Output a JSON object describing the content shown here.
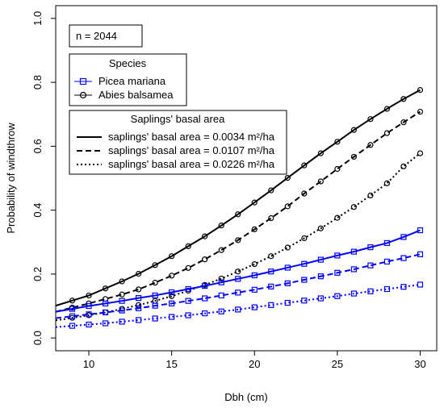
{
  "chart_data": {
    "type": "line",
    "title": "",
    "xlabel": "Dbh (cm)",
    "ylabel": "Probability of windthrow",
    "xlim": [
      8,
      31
    ],
    "ylim": [
      -0.04,
      1.04
    ],
    "x_ticks": [
      10,
      15,
      20,
      25,
      30
    ],
    "y_ticks": [
      0.0,
      0.2,
      0.4,
      0.6,
      0.8,
      1.0
    ],
    "y_tick_labels": [
      "0.0",
      "0.2",
      "0.4",
      "0.6",
      "0.8",
      "1.0"
    ],
    "grid": false,
    "x": [
      9,
      10,
      11,
      12,
      13,
      14,
      15,
      16,
      17,
      18,
      19,
      20,
      21,
      22,
      23,
      24,
      25,
      26,
      27,
      28,
      29,
      30
    ],
    "annotation": "n = 2044",
    "species_legend": {
      "title": "Species",
      "entries": [
        {
          "label": "Picea mariana",
          "color": "#0000ff",
          "marker": "square"
        },
        {
          "label": "Abies balsamea",
          "color": "#000000",
          "marker": "circle"
        }
      ]
    },
    "basal_legend": {
      "title": "Saplings' basal area",
      "entries": [
        {
          "label": "saplings' basal area = 0.0034 m²/ha",
          "dash": "solid"
        },
        {
          "label": "saplings' basal area = 0.0107 m²/ha",
          "dash": "dashed"
        },
        {
          "label": "saplings' basal area = 0.0226 m²/ha",
          "dash": "dotted"
        }
      ]
    },
    "series": [
      {
        "species": "Abies balsamea",
        "basal_area": "0.0034",
        "color": "#000000",
        "marker": "circle",
        "dash": "solid",
        "values": [
          0.117,
          0.133,
          0.155,
          0.177,
          0.201,
          0.228,
          0.256,
          0.287,
          0.318,
          0.352,
          0.387,
          0.424,
          0.462,
          0.501,
          0.54,
          0.578,
          0.614,
          0.651,
          0.685,
          0.717,
          0.748,
          0.776
        ]
      },
      {
        "species": "Abies balsamea",
        "basal_area": "0.0107",
        "color": "#000000",
        "marker": "circle",
        "dash": "dashed",
        "values": [
          0.095,
          0.108,
          0.122,
          0.136,
          0.152,
          0.173,
          0.195,
          0.219,
          0.246,
          0.275,
          0.306,
          0.34,
          0.375,
          0.412,
          0.452,
          0.49,
          0.529,
          0.567,
          0.604,
          0.641,
          0.675,
          0.708
        ]
      },
      {
        "species": "Abies balsamea",
        "basal_area": "0.0226",
        "color": "#000000",
        "marker": "circle",
        "dash": "dotted",
        "values": [
          0.063,
          0.071,
          0.08,
          0.091,
          0.103,
          0.116,
          0.131,
          0.148,
          0.166,
          0.186,
          0.208,
          0.231,
          0.256,
          0.283,
          0.312,
          0.343,
          0.376,
          0.41,
          0.446,
          0.484,
          0.537,
          0.578
        ]
      },
      {
        "species": "Picea mariana",
        "basal_area": "0.0034",
        "color": "#0000ff",
        "marker": "square",
        "dash": "solid",
        "values": [
          0.091,
          0.1,
          0.108,
          0.116,
          0.125,
          0.133,
          0.143,
          0.153,
          0.163,
          0.174,
          0.185,
          0.196,
          0.208,
          0.22,
          0.232,
          0.245,
          0.258,
          0.27,
          0.284,
          0.297,
          0.316,
          0.337
        ]
      },
      {
        "species": "Picea mariana",
        "basal_area": "0.0107",
        "color": "#0000ff",
        "marker": "square",
        "dash": "dashed",
        "values": [
          0.068,
          0.074,
          0.08,
          0.086,
          0.093,
          0.101,
          0.108,
          0.116,
          0.124,
          0.133,
          0.142,
          0.151,
          0.161,
          0.171,
          0.182,
          0.193,
          0.204,
          0.215,
          0.227,
          0.239,
          0.25,
          0.262
        ]
      },
      {
        "species": "Picea mariana",
        "basal_area": "0.0226",
        "color": "#0000ff",
        "marker": "square",
        "dash": "dotted",
        "values": [
          0.038,
          0.042,
          0.046,
          0.051,
          0.056,
          0.061,
          0.066,
          0.071,
          0.077,
          0.083,
          0.089,
          0.096,
          0.103,
          0.11,
          0.117,
          0.124,
          0.131,
          0.139,
          0.146,
          0.153,
          0.16,
          0.167
        ]
      }
    ]
  }
}
